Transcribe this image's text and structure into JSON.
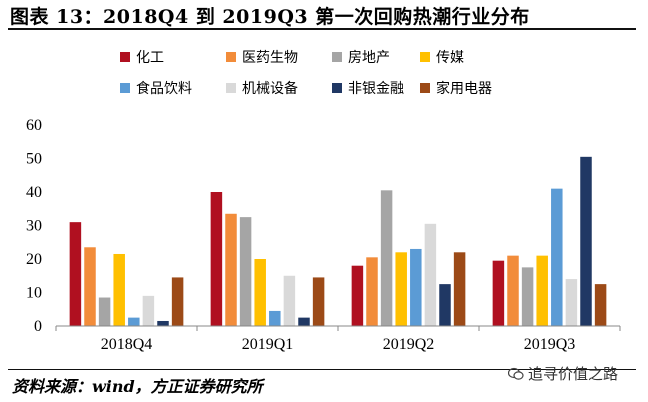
{
  "header": {
    "title": "图表 13：2018Q4 到 2019Q3 第一次回购热潮行业分布"
  },
  "footer": {
    "source": "资料来源：wind，方正证券研究所",
    "watermark": "追寻价值之路"
  },
  "chart_data": {
    "type": "bar",
    "title": "",
    "xlabel": "",
    "ylabel": "",
    "ylim": [
      0,
      60
    ],
    "yticks": [
      0,
      10,
      20,
      30,
      40,
      50,
      60
    ],
    "grid": false,
    "legend_position": "top",
    "categories": [
      "2018Q4",
      "2019Q1",
      "2019Q2",
      "2019Q3"
    ],
    "series": [
      {
        "name": "化工",
        "color": "#b01020",
        "values": [
          31,
          40,
          18,
          19.5
        ]
      },
      {
        "name": "医药生物",
        "color": "#f28c3a",
        "values": [
          23.5,
          33.5,
          20.5,
          21
        ]
      },
      {
        "name": "房地产",
        "color": "#a5a5a5",
        "values": [
          8.5,
          32.5,
          40.5,
          17.5
        ]
      },
      {
        "name": "传媒",
        "color": "#ffc000",
        "values": [
          21.5,
          20,
          22,
          21
        ]
      },
      {
        "name": "食品饮料",
        "color": "#5b9bd5",
        "values": [
          2.5,
          4.5,
          23,
          41
        ]
      },
      {
        "name": "机械设备",
        "color": "#d9d9d9",
        "values": [
          9,
          15,
          30.5,
          14
        ]
      },
      {
        "name": "非银金融",
        "color": "#203864",
        "values": [
          1.5,
          2.5,
          12.5,
          50.5
        ]
      },
      {
        "name": "家用电器",
        "color": "#9c4a17",
        "values": [
          14.5,
          14.5,
          22,
          12.5
        ]
      }
    ]
  }
}
